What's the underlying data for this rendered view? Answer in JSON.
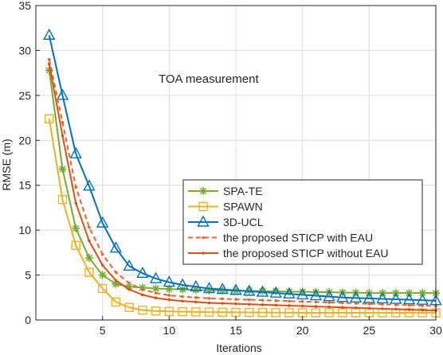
{
  "chart_data": {
    "type": "line",
    "xlabel": "Iterations",
    "ylabel": "RMSE (m)",
    "xlim": [
      0,
      30
    ],
    "ylim": [
      0,
      35
    ],
    "xticks": [
      5,
      10,
      15,
      20,
      25,
      30
    ],
    "yticks": [
      0,
      5,
      10,
      15,
      20,
      25,
      30,
      35
    ],
    "grid": true,
    "legend_position": "lower-right",
    "annotation": "TOA measurement",
    "x": [
      1,
      2,
      3,
      4,
      5,
      6,
      7,
      8,
      9,
      10,
      11,
      12,
      13,
      14,
      15,
      16,
      17,
      18,
      19,
      20,
      21,
      22,
      23,
      24,
      25,
      26,
      27,
      28,
      29,
      30
    ],
    "series": [
      {
        "name": "SPA-TE",
        "color": "#77AC30",
        "marker": "asterisk",
        "line": "solid",
        "values": [
          27.8,
          16.8,
          10.2,
          6.9,
          5.0,
          4.0,
          3.7,
          3.6,
          3.5,
          3.45,
          3.4,
          3.35,
          3.3,
          3.3,
          3.25,
          3.25,
          3.2,
          3.2,
          3.15,
          3.15,
          3.1,
          3.1,
          3.05,
          3.05,
          3.0,
          3.0,
          3.0,
          3.0,
          3.0,
          3.0
        ]
      },
      {
        "name": "SPAWN",
        "color": "#EDB120",
        "marker": "square",
        "line": "solid",
        "values": [
          22.4,
          13.4,
          8.3,
          5.3,
          3.5,
          2.0,
          1.4,
          1.1,
          1.0,
          0.95,
          0.92,
          0.9,
          0.88,
          0.86,
          0.85,
          0.84,
          0.83,
          0.82,
          0.81,
          0.8,
          0.8,
          0.8,
          0.8,
          0.8,
          0.8,
          0.8,
          0.8,
          0.8,
          0.8,
          0.8
        ]
      },
      {
        "name": "3D-UCL",
        "color": "#0072BD",
        "marker": "triangle",
        "line": "solid",
        "values": [
          31.7,
          25.0,
          18.5,
          14.9,
          10.8,
          8.0,
          6.0,
          5.2,
          4.6,
          4.2,
          3.9,
          3.7,
          3.5,
          3.4,
          3.3,
          3.2,
          3.1,
          3.0,
          2.9,
          2.8,
          2.7,
          2.6,
          2.5,
          2.45,
          2.4,
          2.35,
          2.3,
          2.25,
          2.2,
          2.15
        ]
      },
      {
        "name": "the proposed STICP with EAU",
        "color": "#E8642A",
        "marker": "dot",
        "line": "dashed",
        "values": [
          29.0,
          22.0,
          14.8,
          10.3,
          7.3,
          5.3,
          4.1,
          3.4,
          3.0,
          2.75,
          2.6,
          2.5,
          2.4,
          2.35,
          2.3,
          2.25,
          2.2,
          2.15,
          2.1,
          2.05,
          2.0,
          1.95,
          1.9,
          1.85,
          1.8,
          1.75,
          1.7,
          1.65,
          1.6,
          1.55
        ]
      },
      {
        "name": "the proposed STICP without EAU",
        "color": "#D95319",
        "marker": "dot",
        "line": "solid",
        "values": [
          28.5,
          20.5,
          13.0,
          8.8,
          6.1,
          4.4,
          3.4,
          2.8,
          2.45,
          2.25,
          2.1,
          2.0,
          1.9,
          1.85,
          1.8,
          1.75,
          1.7,
          1.65,
          1.6,
          1.55,
          1.5,
          1.45,
          1.4,
          1.35,
          1.3,
          1.25,
          1.2,
          1.15,
          1.1,
          1.05
        ]
      }
    ]
  }
}
